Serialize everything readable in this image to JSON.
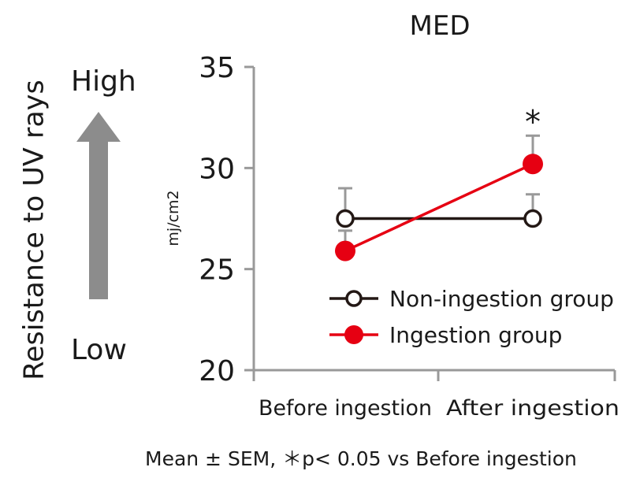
{
  "side_panel": {
    "title": "Resistance to UV rays",
    "high_label": "High",
    "low_label": "Low",
    "arrow_icon": "up-arrow-icon",
    "arrow_color": "#8c8c8c"
  },
  "footnote": "Mean ± SEM, ＊p< 0.05 vs Before ingestion",
  "chart_data": {
    "type": "line",
    "title": "MED",
    "xlabel": "",
    "ylabel": "mj/cm2",
    "categories": [
      "Before ingestion",
      "After ingestion"
    ],
    "ylim": [
      20,
      35
    ],
    "yticks": [
      20,
      25,
      30,
      35
    ],
    "grid": false,
    "legend_position": "right",
    "series": [
      {
        "name": "Non-ingestion group",
        "values": [
          27.5,
          27.5
        ],
        "sem_upper": [
          29.0,
          28.7
        ],
        "color": "#231815",
        "marker": "open-circle"
      },
      {
        "name": "Ingestion group",
        "values": [
          25.9,
          30.2
        ],
        "sem_upper": [
          26.9,
          31.6
        ],
        "color": "#e60012",
        "marker": "filled-circle"
      }
    ],
    "annotations": [
      {
        "category_index": 1,
        "text": "*",
        "y": 32.6
      }
    ],
    "axis_color": "#999999"
  }
}
